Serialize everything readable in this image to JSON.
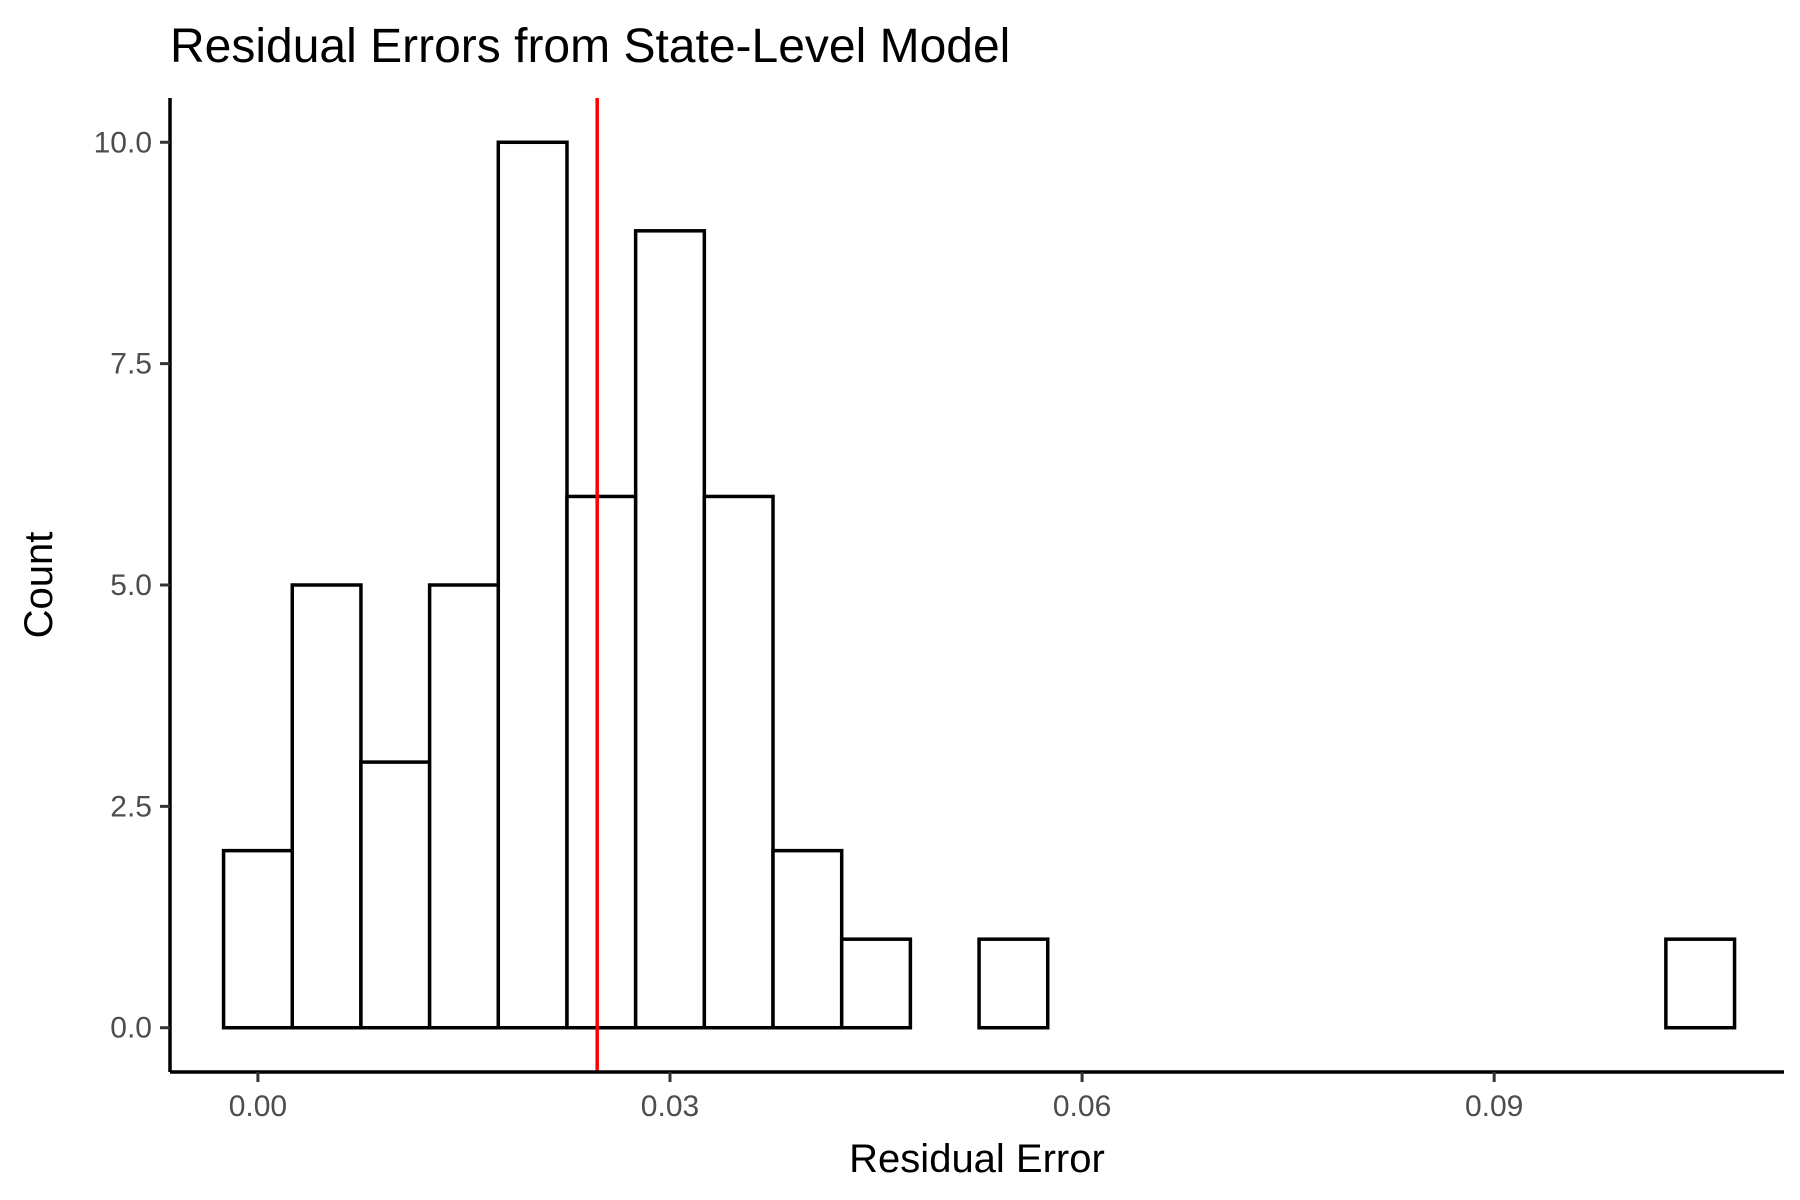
{
  "chart_data": {
    "type": "bar",
    "title": "Residual Errors from State-Level Model",
    "xlabel": "Residual Error",
    "ylabel": "Count",
    "bin_width": 0.005,
    "bins": [
      {
        "x": 0.0,
        "count": 2
      },
      {
        "x": 0.005,
        "count": 5
      },
      {
        "x": 0.01,
        "count": 3
      },
      {
        "x": 0.015,
        "count": 5
      },
      {
        "x": 0.02,
        "count": 10
      },
      {
        "x": 0.025,
        "count": 6
      },
      {
        "x": 0.03,
        "count": 9
      },
      {
        "x": 0.035,
        "count": 6
      },
      {
        "x": 0.04,
        "count": 2
      },
      {
        "x": 0.045,
        "count": 1
      },
      {
        "x": 0.05,
        "count": 0
      },
      {
        "x": 0.055,
        "count": 1
      },
      {
        "x": 0.06,
        "count": 0
      },
      {
        "x": 0.065,
        "count": 0
      },
      {
        "x": 0.07,
        "count": 0
      },
      {
        "x": 0.075,
        "count": 0
      },
      {
        "x": 0.08,
        "count": 0
      },
      {
        "x": 0.085,
        "count": 0
      },
      {
        "x": 0.09,
        "count": 0
      },
      {
        "x": 0.095,
        "count": 0
      },
      {
        "x": 0.1,
        "count": 0
      },
      {
        "x": 0.105,
        "count": 1
      }
    ],
    "xticks": [
      {
        "value": 0.0,
        "label": "0.00"
      },
      {
        "value": 0.03,
        "label": "0.03"
      },
      {
        "value": 0.06,
        "label": "0.06"
      },
      {
        "value": 0.09,
        "label": "0.09"
      }
    ],
    "yticks": [
      {
        "value": 0.0,
        "label": "0.0"
      },
      {
        "value": 2.5,
        "label": "2.5"
      },
      {
        "value": 5.0,
        "label": "5.0"
      },
      {
        "value": 7.5,
        "label": "7.5"
      },
      {
        "value": 10.0,
        "label": "10.0"
      }
    ],
    "xlim": [
      -0.0064,
      0.1111
    ],
    "ylim": [
      -0.5,
      10.5
    ],
    "reference_line": {
      "x": 0.0247,
      "color": "#ff0000"
    },
    "grid": false,
    "bar_fill": "#ffffff",
    "bar_outline": "#000000"
  }
}
